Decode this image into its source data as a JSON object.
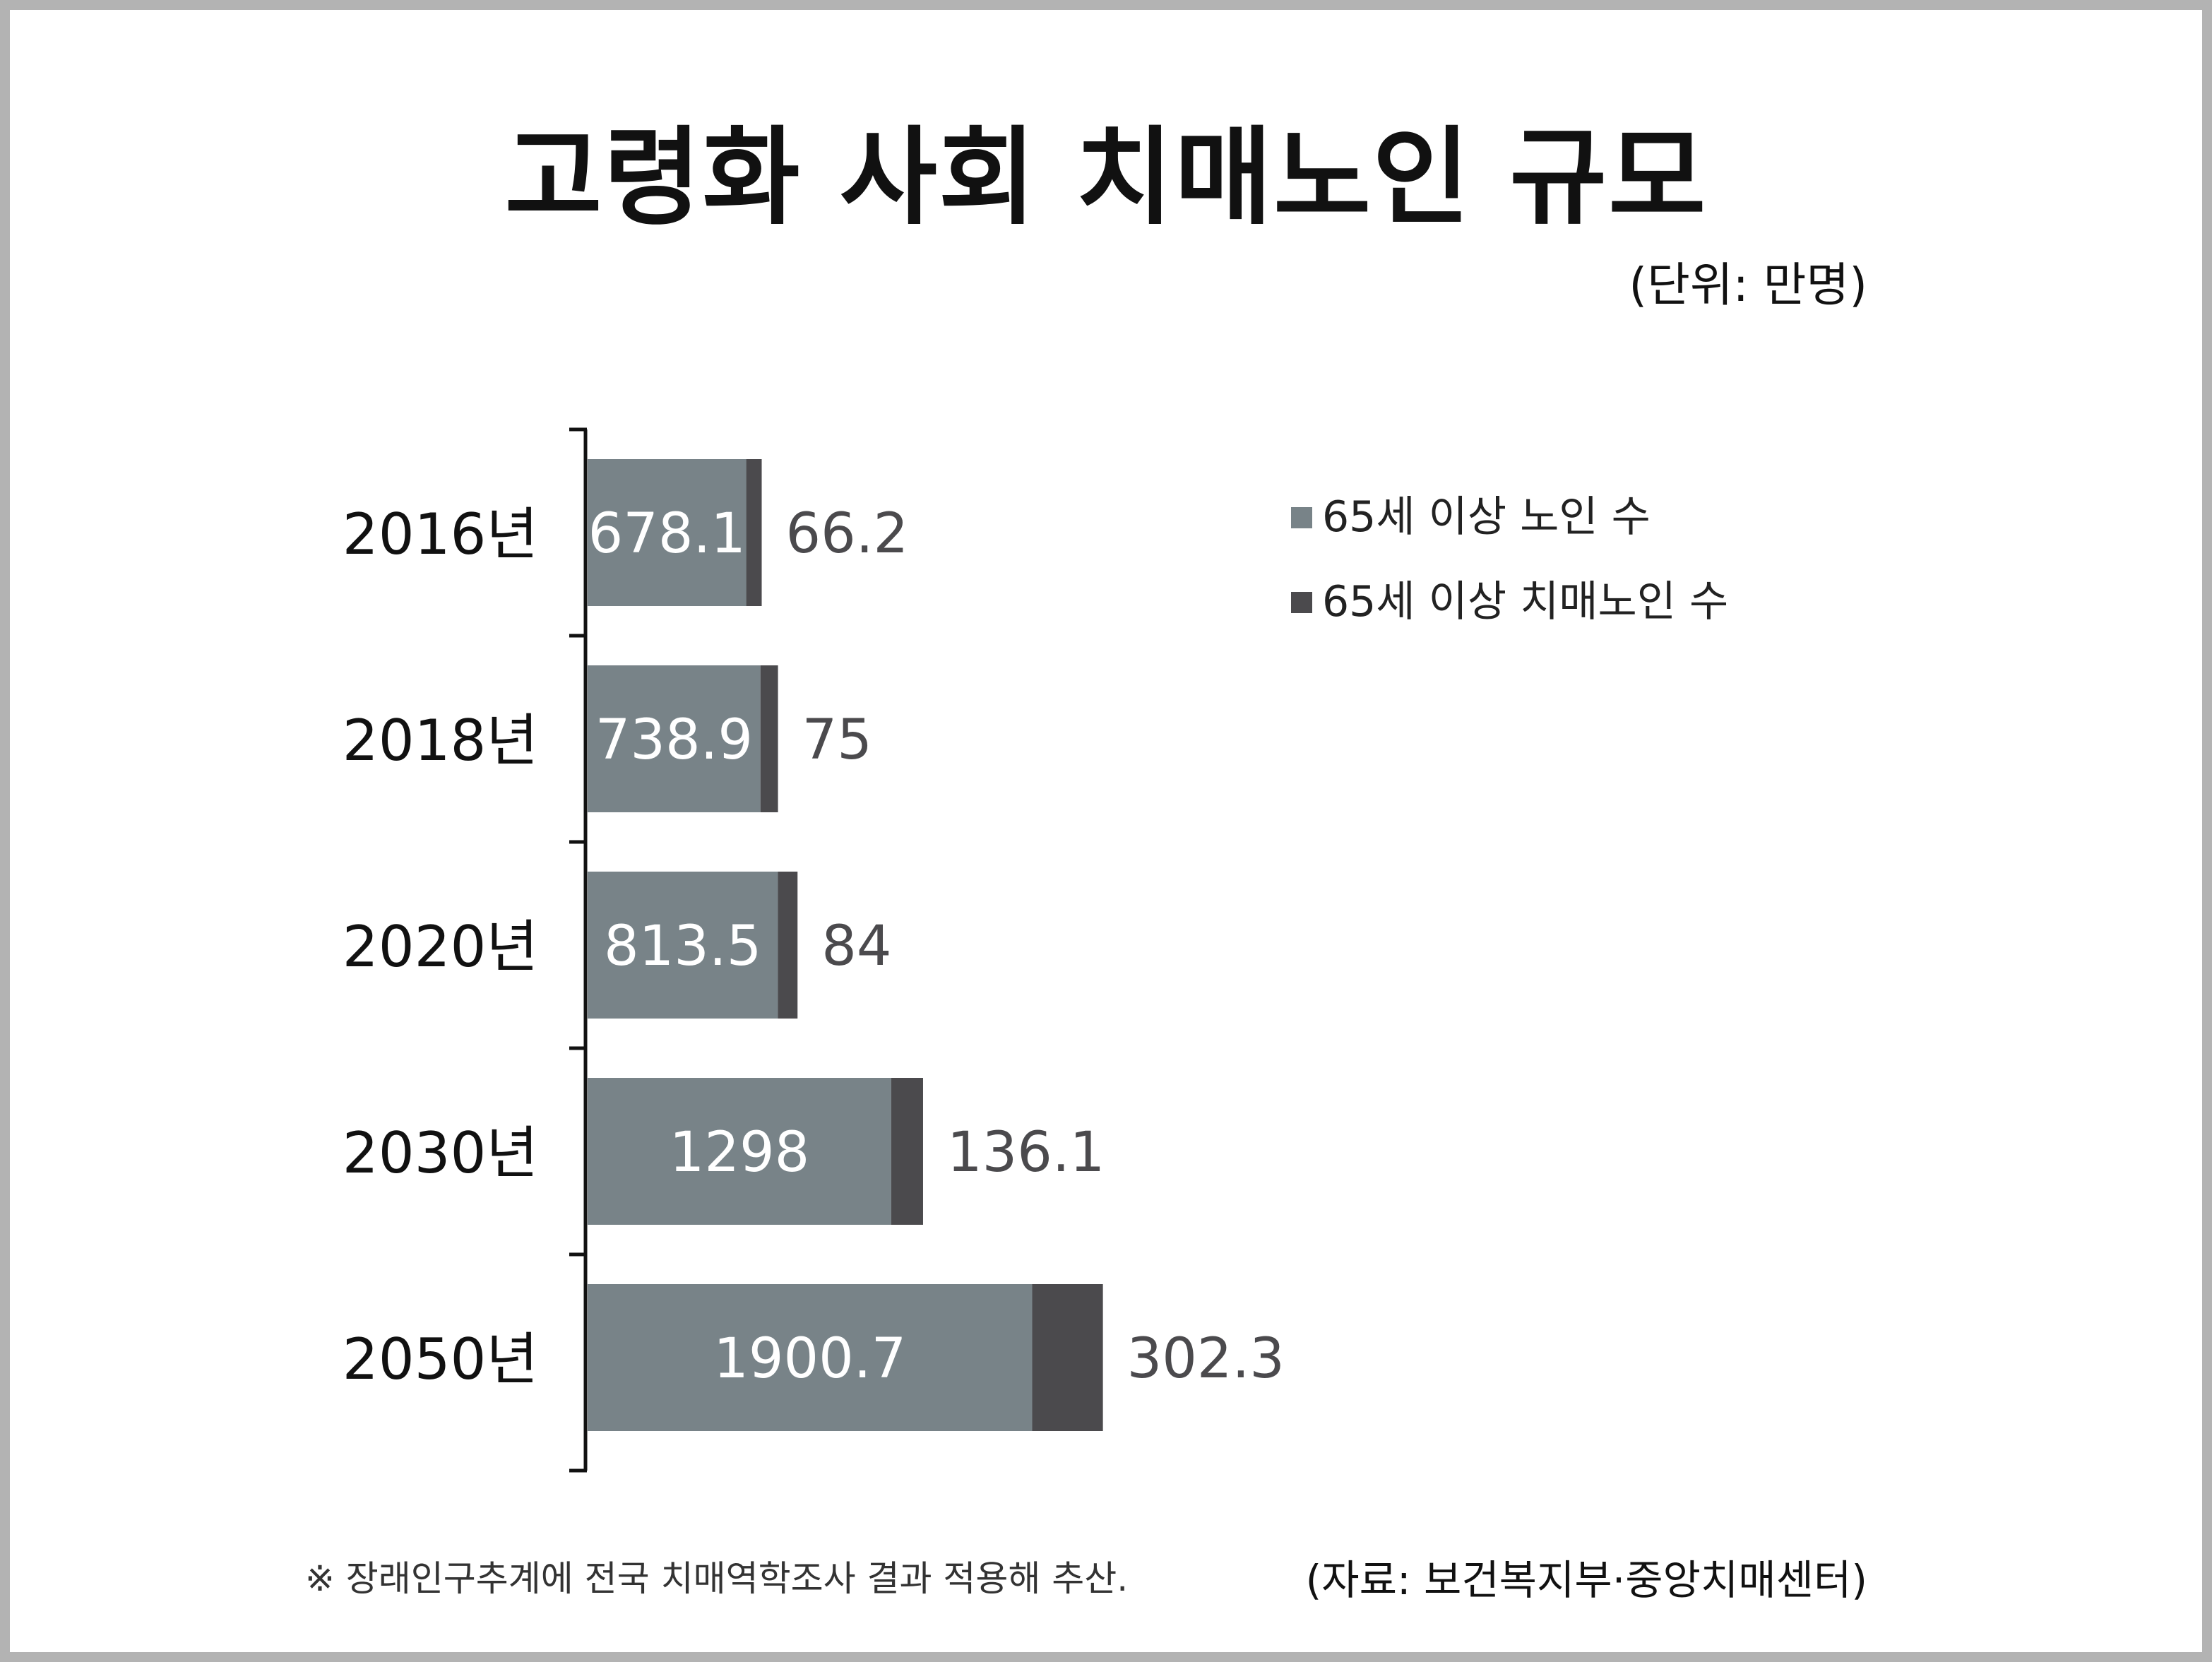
{
  "title": "고령화 사회 치매노인 규모",
  "unit": "(단위: 만명)",
  "footnote": "※ 장래인구추계에 전국 치매역학조사 결과 적용해 추산.",
  "source": "(자료: 보건복지부·중앙치매센터)",
  "colors": {
    "elderly": "#788388",
    "dementia": "#4b4a4d",
    "axis": "#111111",
    "bar_label": "#ffffff",
    "dementia_label": "#4b4a4d"
  },
  "chart_data": {
    "type": "bar",
    "orientation": "horizontal",
    "stacked": true,
    "categories": [
      "2016년",
      "2018년",
      "2020년",
      "2030년",
      "2050년"
    ],
    "series": [
      {
        "name": "65세 이상 노인 수",
        "values": [
          678.1,
          738.9,
          813.5,
          1298,
          1900.7
        ],
        "labels": [
          "678.1",
          "738.9",
          "813.5",
          "1298",
          "1900.7"
        ]
      },
      {
        "name": "65세 이상 치매노인 수",
        "values": [
          66.2,
          75,
          84,
          136.1,
          302.3
        ],
        "labels": [
          "66.2",
          "75",
          "84",
          "136.1",
          "302.3"
        ]
      }
    ],
    "legend_position": "top-right",
    "grid": false
  }
}
